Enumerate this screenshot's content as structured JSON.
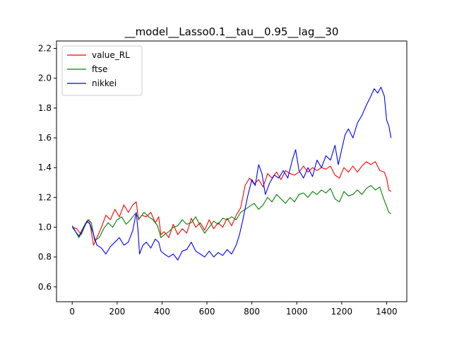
{
  "chart_data": {
    "type": "line",
    "title": "__model__Lasso0.1__tau__0.95__lag__30",
    "xlabel": "",
    "ylabel": "",
    "xlim": [
      -70,
      1490
    ],
    "ylim": [
      0.5,
      2.25
    ],
    "xticks": [
      0,
      200,
      400,
      600,
      800,
      1000,
      1200,
      1400
    ],
    "yticks": [
      0.6,
      0.8,
      1.0,
      1.2,
      1.4,
      1.6,
      1.8,
      2.0,
      2.2
    ],
    "xtick_labels": [
      "0",
      "200",
      "400",
      "600",
      "800",
      "1000",
      "1200",
      "1400"
    ],
    "ytick_labels": [
      "0.6",
      "0.8",
      "1.0",
      "1.2",
      "1.4",
      "1.6",
      "1.8",
      "2.0",
      "2.2"
    ],
    "grid": false,
    "legend_position": "top-left",
    "series": [
      {
        "name": "value_RL",
        "color": "#ff0000",
        "points": [
          [
            0,
            1.0
          ],
          [
            20,
            0.99
          ],
          [
            40,
            0.95
          ],
          [
            60,
            1.02
          ],
          [
            75,
            1.05
          ],
          [
            85,
            0.97
          ],
          [
            95,
            0.88
          ],
          [
            110,
            0.93
          ],
          [
            130,
            1.0
          ],
          [
            150,
            1.08
          ],
          [
            170,
            1.05
          ],
          [
            190,
            1.12
          ],
          [
            210,
            1.07
          ],
          [
            230,
            1.15
          ],
          [
            250,
            1.1
          ],
          [
            270,
            1.15
          ],
          [
            285,
            1.17
          ],
          [
            295,
            1.05
          ],
          [
            310,
            1.08
          ],
          [
            330,
            1.07
          ],
          [
            350,
            1.1
          ],
          [
            370,
            1.03
          ],
          [
            385,
            1.07
          ],
          [
            395,
            0.95
          ],
          [
            410,
            0.97
          ],
          [
            430,
            0.93
          ],
          [
            450,
            1.02
          ],
          [
            470,
            0.95
          ],
          [
            490,
            0.99
          ],
          [
            510,
            0.96
          ],
          [
            530,
            1.06
          ],
          [
            550,
            1.0
          ],
          [
            570,
            1.03
          ],
          [
            590,
            0.98
          ],
          [
            610,
            1.05
          ],
          [
            630,
            0.99
          ],
          [
            650,
            1.03
          ],
          [
            670,
            1.0
          ],
          [
            690,
            1.06
          ],
          [
            710,
            1.01
          ],
          [
            730,
            1.08
          ],
          [
            750,
            1.13
          ],
          [
            770,
            1.28
          ],
          [
            790,
            1.33
          ],
          [
            810,
            1.29
          ],
          [
            830,
            1.32
          ],
          [
            850,
            1.27
          ],
          [
            870,
            1.36
          ],
          [
            890,
            1.33
          ],
          [
            910,
            1.37
          ],
          [
            930,
            1.32
          ],
          [
            950,
            1.38
          ],
          [
            970,
            1.36
          ],
          [
            990,
            1.35
          ],
          [
            1010,
            1.37
          ],
          [
            1030,
            1.41
          ],
          [
            1050,
            1.37
          ],
          [
            1070,
            1.4
          ],
          [
            1090,
            1.38
          ],
          [
            1110,
            1.4
          ],
          [
            1130,
            1.39
          ],
          [
            1150,
            1.41
          ],
          [
            1170,
            1.35
          ],
          [
            1190,
            1.33
          ],
          [
            1210,
            1.4
          ],
          [
            1230,
            1.37
          ],
          [
            1250,
            1.41
          ],
          [
            1270,
            1.37
          ],
          [
            1290,
            1.41
          ],
          [
            1310,
            1.44
          ],
          [
            1330,
            1.42
          ],
          [
            1350,
            1.44
          ],
          [
            1370,
            1.38
          ],
          [
            1390,
            1.37
          ],
          [
            1400,
            1.33
          ],
          [
            1410,
            1.25
          ],
          [
            1420,
            1.24
          ]
        ]
      },
      {
        "name": "ftse",
        "color": "#008000",
        "points": [
          [
            0,
            1.0
          ],
          [
            15,
            0.97
          ],
          [
            30,
            0.93
          ],
          [
            50,
            0.99
          ],
          [
            70,
            1.05
          ],
          [
            85,
            1.03
          ],
          [
            100,
            0.91
          ],
          [
            120,
            0.93
          ],
          [
            140,
            0.99
          ],
          [
            160,
            1.03
          ],
          [
            180,
            1.0
          ],
          [
            200,
            1.05
          ],
          [
            220,
            1.07
          ],
          [
            240,
            1.02
          ],
          [
            260,
            1.05
          ],
          [
            280,
            1.09
          ],
          [
            300,
            1.06
          ],
          [
            320,
            1.1
          ],
          [
            340,
            1.07
          ],
          [
            360,
            1.05
          ],
          [
            380,
            1.01
          ],
          [
            395,
            0.93
          ],
          [
            410,
            0.95
          ],
          [
            430,
            0.97
          ],
          [
            450,
            1.0
          ],
          [
            470,
            1.01
          ],
          [
            490,
            1.05
          ],
          [
            510,
            1.02
          ],
          [
            530,
            1.03
          ],
          [
            550,
            1.07
          ],
          [
            570,
            1.01
          ],
          [
            590,
            0.96
          ],
          [
            610,
            1.0
          ],
          [
            630,
            1.04
          ],
          [
            650,
            1.02
          ],
          [
            670,
            1.06
          ],
          [
            690,
            1.05
          ],
          [
            710,
            1.07
          ],
          [
            730,
            1.05
          ],
          [
            750,
            1.1
          ],
          [
            770,
            1.12
          ],
          [
            790,
            1.14
          ],
          [
            810,
            1.16
          ],
          [
            830,
            1.12
          ],
          [
            850,
            1.15
          ],
          [
            870,
            1.2
          ],
          [
            890,
            1.17
          ],
          [
            910,
            1.22
          ],
          [
            930,
            1.19
          ],
          [
            950,
            1.16
          ],
          [
            970,
            1.2
          ],
          [
            990,
            1.17
          ],
          [
            1010,
            1.22
          ],
          [
            1030,
            1.23
          ],
          [
            1050,
            1.2
          ],
          [
            1070,
            1.24
          ],
          [
            1090,
            1.22
          ],
          [
            1110,
            1.25
          ],
          [
            1130,
            1.23
          ],
          [
            1150,
            1.26
          ],
          [
            1170,
            1.19
          ],
          [
            1190,
            1.17
          ],
          [
            1210,
            1.24
          ],
          [
            1230,
            1.21
          ],
          [
            1250,
            1.22
          ],
          [
            1270,
            1.25
          ],
          [
            1290,
            1.22
          ],
          [
            1310,
            1.26
          ],
          [
            1330,
            1.28
          ],
          [
            1350,
            1.25
          ],
          [
            1370,
            1.27
          ],
          [
            1385,
            1.2
          ],
          [
            1400,
            1.14
          ],
          [
            1410,
            1.1
          ],
          [
            1420,
            1.09
          ]
        ]
      },
      {
        "name": "nikkei",
        "color": "#0000ff",
        "points": [
          [
            0,
            1.01
          ],
          [
            15,
            0.97
          ],
          [
            30,
            0.94
          ],
          [
            50,
            1.0
          ],
          [
            65,
            1.04
          ],
          [
            80,
            1.02
          ],
          [
            95,
            0.95
          ],
          [
            110,
            0.88
          ],
          [
            130,
            0.86
          ],
          [
            150,
            0.82
          ],
          [
            170,
            0.87
          ],
          [
            190,
            0.9
          ],
          [
            210,
            0.93
          ],
          [
            230,
            0.88
          ],
          [
            250,
            0.9
          ],
          [
            270,
            0.98
          ],
          [
            285,
            1.1
          ],
          [
            293,
            0.98
          ],
          [
            300,
            0.82
          ],
          [
            315,
            0.88
          ],
          [
            330,
            0.9
          ],
          [
            350,
            0.86
          ],
          [
            370,
            0.92
          ],
          [
            385,
            0.9
          ],
          [
            395,
            0.84
          ],
          [
            410,
            0.82
          ],
          [
            430,
            0.8
          ],
          [
            450,
            0.82
          ],
          [
            470,
            0.78
          ],
          [
            490,
            0.84
          ],
          [
            510,
            0.85
          ],
          [
            530,
            0.9
          ],
          [
            550,
            0.84
          ],
          [
            570,
            0.82
          ],
          [
            590,
            0.8
          ],
          [
            610,
            0.84
          ],
          [
            630,
            0.8
          ],
          [
            650,
            0.83
          ],
          [
            670,
            0.81
          ],
          [
            690,
            0.85
          ],
          [
            710,
            0.82
          ],
          [
            730,
            0.88
          ],
          [
            745,
            0.95
          ],
          [
            760,
            1.05
          ],
          [
            780,
            1.2
          ],
          [
            800,
            1.32
          ],
          [
            815,
            1.28
          ],
          [
            830,
            1.42
          ],
          [
            845,
            1.36
          ],
          [
            860,
            1.22
          ],
          [
            880,
            1.3
          ],
          [
            900,
            1.35
          ],
          [
            920,
            1.33
          ],
          [
            940,
            1.38
          ],
          [
            960,
            1.33
          ],
          [
            980,
            1.45
          ],
          [
            995,
            1.52
          ],
          [
            1010,
            1.38
          ],
          [
            1030,
            1.33
          ],
          [
            1050,
            1.4
          ],
          [
            1070,
            1.34
          ],
          [
            1090,
            1.45
          ],
          [
            1110,
            1.4
          ],
          [
            1130,
            1.48
          ],
          [
            1150,
            1.45
          ],
          [
            1170,
            1.55
          ],
          [
            1185,
            1.42
          ],
          [
            1200,
            1.52
          ],
          [
            1215,
            1.62
          ],
          [
            1230,
            1.66
          ],
          [
            1250,
            1.6
          ],
          [
            1270,
            1.7
          ],
          [
            1290,
            1.75
          ],
          [
            1310,
            1.82
          ],
          [
            1330,
            1.88
          ],
          [
            1345,
            1.93
          ],
          [
            1360,
            1.9
          ],
          [
            1375,
            1.94
          ],
          [
            1390,
            1.88
          ],
          [
            1400,
            1.72
          ],
          [
            1410,
            1.68
          ],
          [
            1420,
            1.6
          ]
        ]
      }
    ]
  }
}
